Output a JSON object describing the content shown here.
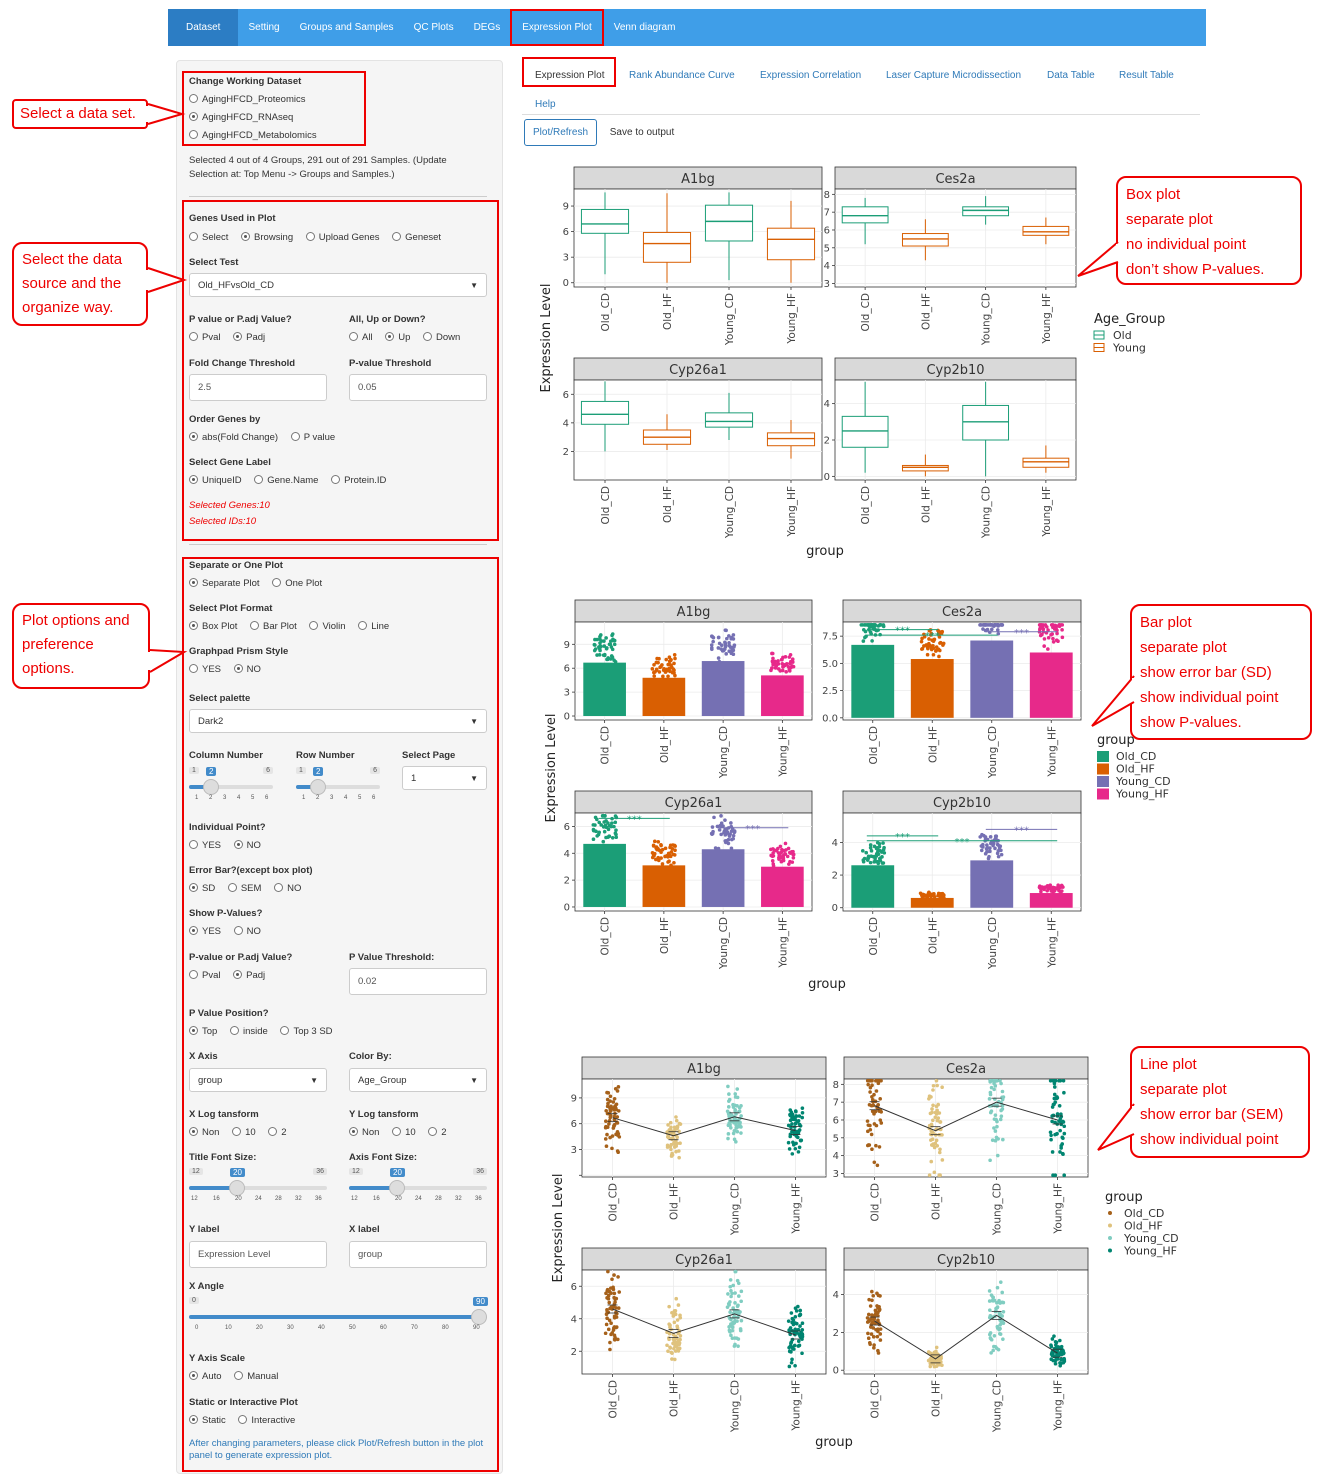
{
  "nav": {
    "tabs": [
      {
        "label": "Dataset"
      },
      {
        "label": "Setting"
      },
      {
        "label": "Groups and Samples"
      },
      {
        "label": "QC Plots"
      },
      {
        "label": "DEGs"
      },
      {
        "label": "Expression Plot"
      },
      {
        "label": "Venn diagram"
      }
    ]
  },
  "subtabs": [
    "Expression Plot",
    "Rank Abundance Curve",
    "Expression Correlation",
    "Laser Capture Microdissection",
    "Data Table",
    "Result Table",
    "Help"
  ],
  "buttons": {
    "plot": "Plot/Refresh",
    "save": "Save to output"
  },
  "sidebar": {
    "dataset_label": "Change Working Dataset",
    "datasets": [
      "AgingHFCD_Proteomics",
      "AgingHFCD_RNAseq",
      "AgingHFCD_Metabolomics"
    ],
    "selected_note": "Selected 4 out of 4 Groups, 291 out of 291 Samples. (Update Selection at: Top Menu -> Groups and Samples.)",
    "genes_used_label": "Genes Used in Plot",
    "genes_used_opts": [
      "Select",
      "Browsing",
      "Upload Genes",
      "Geneset"
    ],
    "select_test_label": "Select Test",
    "select_test_value": "Old_HFvsOld_CD",
    "pval_label": "P value or P.adj Value?",
    "pval_opts": [
      "Pval",
      "Padj"
    ],
    "dir_label": "All, Up or Down?",
    "dir_opts": [
      "All",
      "Up",
      "Down"
    ],
    "fc_label": "Fold Change Threshold",
    "fc_value": "2.5",
    "pthr_label": "P-value Threshold",
    "pthr_value": "0.05",
    "order_label": "Order Genes by",
    "order_opts": [
      "abs(Fold Change)",
      "P value"
    ],
    "genelabel_label": "Select Gene Label",
    "genelabel_opts": [
      "UniqueID",
      "Gene.Name",
      "Protein.ID"
    ],
    "selected_genes": "Selected Genes:10",
    "selected_ids": "Selected IDs:10",
    "sep_label": "Separate or One Plot",
    "sep_opts": [
      "Separate Plot",
      "One Plot"
    ],
    "format_label": "Select Plot Format",
    "format_opts": [
      "Box Plot",
      "Bar Plot",
      "Violin",
      "Line"
    ],
    "prism_label": "Graphpad Prism Style",
    "prism_opts": [
      "YES",
      "NO"
    ],
    "palette_label": "Select palette",
    "palette_value": "Dark2",
    "col_label": "Column Number",
    "row_label": "Row Number",
    "page_label": "Select Page",
    "page_value": "1",
    "col_slider": {
      "min": "1",
      "max": "6",
      "value": "2",
      "ticks": [
        "1",
        "2",
        "3",
        "4",
        "5",
        "6"
      ]
    },
    "row_slider": {
      "min": "1",
      "max": "6",
      "value": "2",
      "ticks": [
        "1",
        "2",
        "3",
        "4",
        "5",
        "6"
      ]
    },
    "indiv_label": "Individual Point?",
    "indiv_opts": [
      "YES",
      "NO"
    ],
    "err_label": "Error Bar?(except box plot)",
    "err_opts": [
      "SD",
      "SEM",
      "NO"
    ],
    "showp_label": "Show P-Values?",
    "showp_opts": [
      "YES",
      "NO"
    ],
    "pv2_label": "P-value or P.adj Value?",
    "pv2_opts": [
      "Pval",
      "Padj"
    ],
    "pvthr2_label": "P Value Threshold:",
    "pvthr2_value": "0.02",
    "ppos_label": "P Value Position?",
    "ppos_opts": [
      "Top",
      "inside",
      "Top 3 SD"
    ],
    "xaxis_label": "X Axis",
    "xaxis_value": "group",
    "color_label": "Color By:",
    "color_value": "Age_Group",
    "xlog_label": "X Log tansform",
    "ylog_label": "Y Log tansform",
    "log_opts": [
      "Non",
      "10",
      "2"
    ],
    "title_font_label": "Title Font Size:",
    "axis_font_label": "Axis Font Size:",
    "font_slider": {
      "min": "12",
      "max": "36",
      "value": "20",
      "ticks": [
        "12",
        "16",
        "20",
        "24",
        "28",
        "32",
        "36"
      ]
    },
    "ylabel_label": "Y label",
    "ylabel_value": "Expression Level",
    "xlabel_label": "X label",
    "xlabel_value": "group",
    "xangle_label": "X Angle",
    "xangle_slider": {
      "min": "0",
      "max": "90",
      "value": "90",
      "ticks": [
        "0",
        "10",
        "20",
        "30",
        "40",
        "50",
        "60",
        "70",
        "80",
        "90"
      ]
    },
    "yscale_label": "Y Axis Scale",
    "yscale_opts": [
      "Auto",
      "Manual"
    ],
    "static_label": "Static or Interactive Plot",
    "static_opts": [
      "Static",
      "Interactive"
    ],
    "footer_note": "After changing parameters, please click Plot/Refresh button in the plot panel to generate expression plot."
  },
  "callouts": {
    "dataset": "Select a data set.",
    "source": [
      "Select the data",
      "source and the",
      "organize way."
    ],
    "options": [
      "Plot options and",
      "preference",
      "options."
    ],
    "box": [
      "Box plot",
      "separate plot",
      "no individual point",
      "don’t show P-values."
    ],
    "bar": [
      "Bar plot",
      "separate plot",
      "show error bar (SD)",
      "show individual point",
      "show P-values."
    ],
    "line": [
      "Line plot",
      "separate plot",
      "show error bar (SEM)",
      "show individual point"
    ]
  },
  "plots": {
    "ylabel": "Expression Level",
    "xlabel": "group",
    "panels": [
      "A1bg",
      "Ces2a",
      "Cyp26a1",
      "Cyp2b10"
    ],
    "categories": [
      "Old_CD",
      "Old_HF",
      "Young_CD",
      "Young_HF"
    ],
    "box_legend_title": "Age_Group",
    "box_legend": [
      "Old",
      "Young"
    ],
    "group_legend_title": "group",
    "group_legend": [
      "Old_CD",
      "Old_HF",
      "Young_CD",
      "Young_HF"
    ],
    "sig_label": "***",
    "colors": {
      "old": "#1b9e77",
      "young": "#d95f02",
      "dark2": [
        "#1b9e77",
        "#d95f02",
        "#7570b3",
        "#e7298a"
      ],
      "brbg": [
        "#a6611a",
        "#dfc27d",
        "#80cdc1",
        "#018571"
      ]
    }
  },
  "chart_data": [
    {
      "type": "box",
      "title": "",
      "ylabel": "Expression Level",
      "xlabel": "group",
      "categories": [
        "Old_CD",
        "Old_HF",
        "Young_CD",
        "Young_HF"
      ],
      "series": [
        {
          "name": "A1bg",
          "ylim": [
            -0.5,
            11
          ],
          "ticks": [
            0,
            3,
            6,
            9
          ],
          "stats": [
            [
              1,
              5.8,
              6.9,
              8.6,
              10.6
            ],
            [
              0,
              2.4,
              4.6,
              5.9,
              10.5
            ],
            [
              0.3,
              4.9,
              7.2,
              9.1,
              10.6
            ],
            [
              0,
              2.7,
              5.1,
              6.4,
              9.6
            ]
          ]
        },
        {
          "name": "Ces2a",
          "ylim": [
            2.8,
            8.3
          ],
          "ticks": [
            3,
            4,
            5,
            6,
            7,
            8
          ],
          "stats": [
            [
              5.2,
              6.4,
              6.8,
              7.3,
              7.8
            ],
            [
              4.3,
              5.1,
              5.5,
              5.8,
              6.6
            ],
            [
              6.3,
              6.8,
              7.1,
              7.3,
              7.9
            ],
            [
              5.2,
              5.7,
              5.9,
              6.2,
              6.7
            ]
          ]
        },
        {
          "name": "Cyp26a1",
          "ylim": [
            0,
            7
          ],
          "ticks": [
            2,
            4,
            6
          ],
          "stats": [
            [
              2,
              3.9,
              4.6,
              5.5,
              6.9
            ],
            [
              2.1,
              2.5,
              3,
              3.5,
              4.6
            ],
            [
              2.8,
              3.7,
              4.1,
              4.7,
              6.1
            ],
            [
              1.5,
              2.4,
              2.9,
              3.3,
              4.2
            ]
          ]
        },
        {
          "name": "Cyp2b10",
          "ylim": [
            -0.2,
            5.3
          ],
          "ticks": [
            0,
            2,
            4
          ],
          "stats": [
            [
              0.2,
              1.6,
              2.5,
              3.3,
              5.2
            ],
            [
              0,
              0.3,
              0.5,
              0.6,
              1.2
            ],
            [
              0,
              2,
              3,
              3.9,
              5.2
            ],
            [
              0.2,
              0.5,
              0.8,
              1,
              1.7
            ]
          ]
        }
      ],
      "legend": {
        "title": "Age_Group",
        "entries": [
          "Old",
          "Young"
        ]
      }
    },
    {
      "type": "bar",
      "title": "",
      "ylabel": "Expression Level",
      "xlabel": "group",
      "categories": [
        "Old_CD",
        "Old_HF",
        "Young_CD",
        "Young_HF"
      ],
      "series": [
        {
          "name": "A1bg",
          "ylim": [
            -0.5,
            11.8
          ],
          "ticks": [
            0,
            3,
            6,
            9
          ],
          "tick_labels": [
            "0",
            "3",
            "6",
            "9"
          ],
          "values": [
            6.7,
            4.8,
            6.9,
            5.1
          ]
        },
        {
          "name": "Ces2a",
          "ylim": [
            -0.2,
            8.8
          ],
          "ticks": [
            0,
            2.5,
            5,
            7.5
          ],
          "tick_labels": [
            "0.0",
            "2.5",
            "5.0",
            "7.5"
          ],
          "values": [
            6.7,
            5.4,
            7.1,
            6
          ],
          "sig_lines": [
            [
              0,
              1,
              8.1
            ],
            [
              2,
              3,
              7.9
            ],
            [
              0,
              2,
              7.6
            ]
          ]
        },
        {
          "name": "Cyp26a1",
          "ylim": [
            -0.3,
            7
          ],
          "ticks": [
            0,
            2,
            4,
            6
          ],
          "tick_labels": [
            "0",
            "2",
            "4",
            "6"
          ],
          "values": [
            4.7,
            3.1,
            4.3,
            3
          ],
          "sig_lines": [
            [
              0,
              1,
              6.6
            ],
            [
              2,
              3,
              5.9
            ]
          ]
        },
        {
          "name": "Cyp2b10",
          "ylim": [
            -0.2,
            5.8
          ],
          "ticks": [
            0,
            2,
            4
          ],
          "tick_labels": [
            "0",
            "2",
            "4"
          ],
          "values": [
            2.6,
            0.6,
            2.9,
            0.9
          ],
          "sig_lines": [
            [
              0,
              1,
              4.4
            ],
            [
              2,
              3,
              4.8
            ],
            [
              0,
              3,
              4.1
            ]
          ]
        }
      ],
      "legend": {
        "title": "group",
        "entries": [
          "Old_CD",
          "Old_HF",
          "Young_CD",
          "Young_HF"
        ]
      }
    },
    {
      "type": "line",
      "title": "",
      "ylabel": "Expression Level",
      "xlabel": "group",
      "categories": [
        "Old_CD",
        "Old_HF",
        "Young_CD",
        "Young_HF"
      ],
      "series": [
        {
          "name": "A1bg",
          "ylim": [
            -0.2,
            11.2
          ],
          "ticks": [
            0,
            3,
            6,
            9
          ],
          "tick_labels": [
            "",
            "3",
            "6",
            "9"
          ],
          "values": [
            6.7,
            4.6,
            6.8,
            5.2
          ]
        },
        {
          "name": "Ces2a",
          "ylim": [
            2.8,
            8.3
          ],
          "ticks": [
            3,
            4,
            5,
            6,
            7,
            8
          ],
          "tick_labels": [
            "3",
            "4",
            "5",
            "6",
            "7",
            "8"
          ],
          "values": [
            6.8,
            5.4,
            7,
            6
          ]
        },
        {
          "name": "Cyp26a1",
          "ylim": [
            0.6,
            7
          ],
          "ticks": [
            2,
            4,
            6
          ],
          "tick_labels": [
            "2",
            "4",
            "6"
          ],
          "values": [
            4.6,
            3.1,
            4.3,
            3
          ]
        },
        {
          "name": "Cyp2b10",
          "ylim": [
            -0.2,
            5.3
          ],
          "ticks": [
            0,
            2,
            4
          ],
          "tick_labels": [
            "0",
            "2",
            "4"
          ],
          "values": [
            2.6,
            0.6,
            2.9,
            0.9
          ]
        }
      ],
      "legend": {
        "title": "group",
        "entries": [
          "Old_CD",
          "Old_HF",
          "Young_CD",
          "Young_HF"
        ]
      }
    }
  ]
}
